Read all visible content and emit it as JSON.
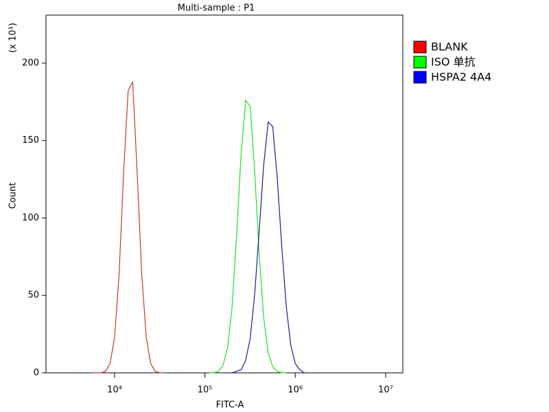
{
  "chart_data": {
    "type": "line",
    "title": "Multi-sample : P1",
    "x_label": "FITC-A",
    "y_label": "Count",
    "y_annotation": "(x 10¹)",
    "xscale": "log",
    "xlim": [
      1740,
      15500000
    ],
    "ylim": [
      0,
      231
    ],
    "xticks": [
      {
        "value": 10000,
        "label": "10⁴"
      },
      {
        "value": 100000,
        "label": "10⁵"
      },
      {
        "value": 1000000,
        "label": "10⁶"
      },
      {
        "value": 10000000,
        "label": "10⁷"
      }
    ],
    "yticks": [
      0,
      50,
      100,
      150,
      200
    ],
    "legend": "top-right",
    "series": [
      {
        "name": "BLANK",
        "color": "#c0392b",
        "legend_color": "#ff0000",
        "x": [
          5623,
          6310,
          7079,
          7943,
          8913,
          10000,
          11220,
          12589,
          14125,
          15849,
          17783,
          19953,
          22387,
          25119,
          28184,
          31623,
          35481
        ],
        "values": [
          0,
          0,
          0,
          1,
          6,
          23,
          64,
          129,
          182,
          188,
          129,
          64,
          23,
          6,
          1,
          0,
          0
        ]
      },
      {
        "name": "ISO 单抗",
        "color": "#22dd22",
        "legend_color": "#00ff00",
        "x": [
          112202,
          125893,
          141254,
          158489,
          177828,
          199526,
          223872,
          251189,
          281838,
          316228,
          354813,
          398107,
          446684,
          501187,
          562341,
          630957,
          707946,
          794328
        ],
        "values": [
          0,
          0,
          1,
          5,
          16,
          42,
          88,
          141,
          176,
          172,
          131,
          77,
          36,
          13,
          4,
          1,
          0,
          0
        ]
      },
      {
        "name": "HSPA2 4A4",
        "color": "#1a1a99",
        "legend_color": "#0000ff",
        "x": [
          177828,
          199526,
          223872,
          251189,
          281838,
          316228,
          354813,
          398107,
          446684,
          501187,
          562341,
          630957,
          707946,
          794328,
          891251,
          1000000,
          1122018,
          1258925,
          1412538
        ],
        "values": [
          0,
          0,
          1,
          2,
          8,
          22,
          50,
          91,
          134,
          162,
          159,
          126,
          82,
          43,
          18,
          6,
          2,
          0,
          0
        ]
      }
    ]
  }
}
